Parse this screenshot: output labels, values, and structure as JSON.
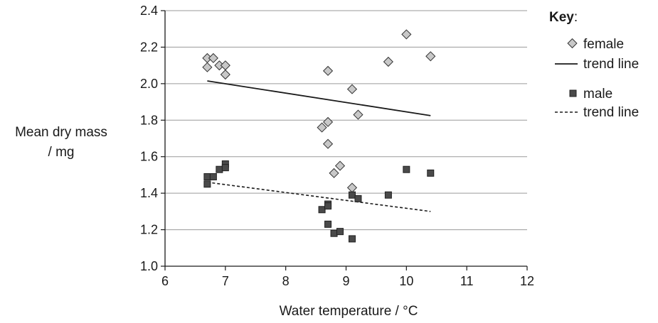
{
  "chart_data": {
    "type": "scatter",
    "title": "",
    "xlabel": "Water temperature / °C",
    "ylabel_lines": [
      "Mean dry mass",
      "/ mg"
    ],
    "xlim": [
      6,
      12
    ],
    "ylim": [
      1.0,
      2.4
    ],
    "xticks": [
      "6",
      "7",
      "8",
      "9",
      "10",
      "11",
      "12"
    ],
    "yticks": [
      "1.0",
      "1.2",
      "1.4",
      "1.6",
      "1.8",
      "2.0",
      "2.2",
      "2.4"
    ],
    "grid": "horizontal",
    "legend": {
      "title": "Key",
      "title_suffix": ":",
      "placement": "right",
      "female_label": "female",
      "female_trend_label": "trend line",
      "male_label": "male",
      "male_trend_label": "trend line"
    },
    "series": [
      {
        "key": "female",
        "marker": "diamond",
        "color": "#c8c8c8",
        "points": [
          [
            6.7,
            2.14
          ],
          [
            6.8,
            2.14
          ],
          [
            6.9,
            2.1
          ],
          [
            7.0,
            2.1
          ],
          [
            6.7,
            2.09
          ],
          [
            7.0,
            2.05
          ],
          [
            8.7,
            2.07
          ],
          [
            9.1,
            1.97
          ],
          [
            9.2,
            1.83
          ],
          [
            8.7,
            1.79
          ],
          [
            8.6,
            1.76
          ],
          [
            8.7,
            1.67
          ],
          [
            8.9,
            1.55
          ],
          [
            8.8,
            1.51
          ],
          [
            9.1,
            1.43
          ],
          [
            9.7,
            2.12
          ],
          [
            10.0,
            2.27
          ],
          [
            10.4,
            2.15
          ]
        ],
        "trend": [
          [
            6.7,
            2.015
          ],
          [
            10.4,
            1.825
          ]
        ]
      },
      {
        "key": "male",
        "marker": "square",
        "color": "#4a4a4a",
        "points": [
          [
            6.7,
            1.49
          ],
          [
            6.8,
            1.49
          ],
          [
            6.7,
            1.45
          ],
          [
            6.9,
            1.53
          ],
          [
            7.0,
            1.56
          ],
          [
            7.0,
            1.54
          ],
          [
            8.6,
            1.31
          ],
          [
            8.7,
            1.34
          ],
          [
            8.7,
            1.33
          ],
          [
            8.7,
            1.23
          ],
          [
            8.8,
            1.18
          ],
          [
            8.9,
            1.19
          ],
          [
            9.1,
            1.15
          ],
          [
            9.1,
            1.39
          ],
          [
            9.2,
            1.37
          ],
          [
            9.7,
            1.39
          ],
          [
            10.0,
            1.53
          ],
          [
            10.4,
            1.51
          ]
        ],
        "trend": [
          [
            6.7,
            1.46
          ],
          [
            10.4,
            1.3
          ]
        ]
      }
    ]
  }
}
